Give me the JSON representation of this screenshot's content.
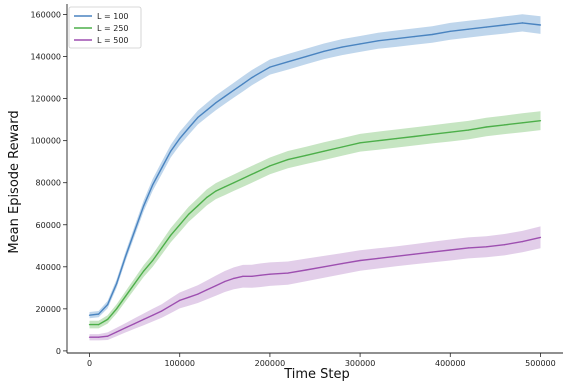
{
  "chart_data": {
    "type": "line",
    "title": "",
    "xlabel": "Time Step",
    "ylabel": "Mean Episode Reward",
    "xlim": [
      -25000,
      525000
    ],
    "ylim": [
      -1000,
      165000
    ],
    "xticks": [
      0,
      100000,
      200000,
      300000,
      400000,
      500000
    ],
    "yticks": [
      0,
      20000,
      40000,
      60000,
      80000,
      100000,
      120000,
      140000,
      160000
    ],
    "grid": false,
    "legend_position": "top-left",
    "series": [
      {
        "name": "L = 100",
        "color": "#4a84c0",
        "band_color": "#a9c8e6",
        "x": [
          0,
          10000,
          20000,
          30000,
          40000,
          50000,
          60000,
          70000,
          80000,
          90000,
          100000,
          110000,
          120000,
          130000,
          140000,
          150000,
          160000,
          170000,
          180000,
          190000,
          200000,
          220000,
          240000,
          260000,
          280000,
          300000,
          320000,
          340000,
          360000,
          380000,
          400000,
          420000,
          440000,
          460000,
          480000,
          500000
        ],
        "y": [
          17000,
          17500,
          22000,
          32000,
          45000,
          57000,
          69000,
          79000,
          87000,
          95000,
          101000,
          106000,
          111000,
          114500,
          118000,
          121000,
          124000,
          127000,
          130000,
          132500,
          135000,
          137500,
          140000,
          142500,
          144500,
          146000,
          147500,
          148500,
          149500,
          150500,
          152000,
          153000,
          154000,
          155000,
          156000,
          155000
        ],
        "band": [
          1500,
          1500,
          1800,
          2000,
          2200,
          2400,
          2600,
          2800,
          3000,
          3000,
          3200,
          3200,
          3300,
          3400,
          3500,
          3500,
          3500,
          3600,
          3600,
          3600,
          3600,
          3700,
          3700,
          3700,
          3800,
          3800,
          3800,
          3900,
          3900,
          3900,
          4000,
          4000,
          4000,
          4100,
          4100,
          4200
        ]
      },
      {
        "name": "L = 250",
        "color": "#4daf4a",
        "band_color": "#b3dcae",
        "x": [
          0,
          10000,
          20000,
          30000,
          40000,
          50000,
          60000,
          70000,
          80000,
          90000,
          100000,
          110000,
          120000,
          130000,
          140000,
          150000,
          160000,
          170000,
          180000,
          190000,
          200000,
          220000,
          240000,
          260000,
          280000,
          300000,
          320000,
          340000,
          360000,
          380000,
          400000,
          420000,
          440000,
          460000,
          480000,
          500000
        ],
        "y": [
          12500,
          12500,
          15000,
          20000,
          26000,
          32000,
          38000,
          43000,
          49000,
          55000,
          60000,
          65000,
          69000,
          73000,
          76000,
          78000,
          80000,
          82000,
          84000,
          86000,
          88000,
          91000,
          93000,
          95000,
          97000,
          99000,
          100000,
          101000,
          102000,
          103000,
          104000,
          105000,
          106500,
          107500,
          108500,
          109500
        ]
      },
      {
        "name": "L = 500",
        "color": "#9d4fb0",
        "band_color": "#d8bde2",
        "x": [
          0,
          10000,
          20000,
          30000,
          40000,
          50000,
          60000,
          70000,
          80000,
          90000,
          100000,
          110000,
          120000,
          130000,
          140000,
          150000,
          160000,
          170000,
          180000,
          190000,
          200000,
          220000,
          240000,
          260000,
          280000,
          300000,
          320000,
          340000,
          360000,
          380000,
          400000,
          420000,
          440000,
          460000,
          480000,
          500000
        ],
        "y": [
          6500,
          6500,
          7000,
          9000,
          11000,
          13000,
          15000,
          17000,
          19000,
          21500,
          24000,
          25500,
          27000,
          29000,
          31000,
          33000,
          34500,
          35500,
          35500,
          36000,
          36500,
          37000,
          38500,
          40000,
          41500,
          43000,
          44000,
          45000,
          46000,
          47000,
          48000,
          49000,
          49500,
          50500,
          52000,
          54000
        ]
      }
    ]
  },
  "bands": {
    "L = 250": [
      1800,
      1800,
      2000,
      2200,
      2400,
      2600,
      2800,
      3000,
      3200,
      3400,
      3500,
      3600,
      3700,
      3800,
      3800,
      3900,
      3900,
      4000,
      4000,
      4000,
      4000,
      4100,
      4100,
      4200,
      4200,
      4200,
      4300,
      4300,
      4300,
      4300,
      4400,
      4400,
      4400,
      4400,
      4500,
      4500
    ],
    "L = 500": [
      1500,
      1500,
      1800,
      2000,
      2200,
      2500,
      2800,
      3000,
      3200,
      3500,
      3800,
      4000,
      4200,
      4500,
      4800,
      5000,
      5200,
      5400,
      5500,
      5600,
      5600,
      5500,
      5400,
      5200,
      5000,
      4900,
      4800,
      4700,
      4800,
      4900,
      5000,
      5000,
      5000,
      5100,
      5100,
      5200
    ]
  }
}
